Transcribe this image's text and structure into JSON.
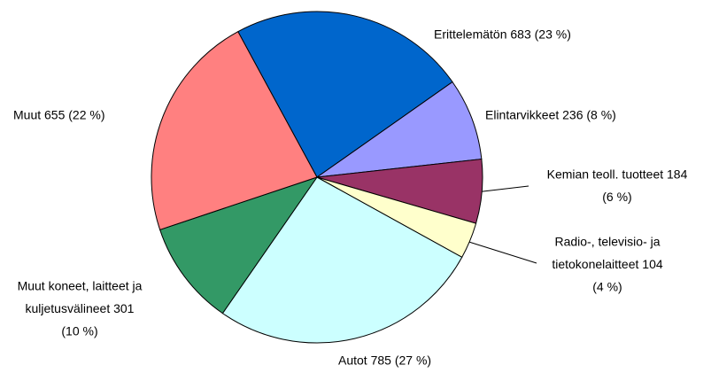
{
  "chart_data": {
    "type": "pie",
    "values": [
      683,
      236,
      184,
      104,
      785,
      301,
      655
    ],
    "value_labels": [
      [
        "Erittelemätön 683 (23 %)"
      ],
      [
        "Elintarvikkeet  236 (8 %)"
      ],
      [
        "Kemian teoll. tuotteet 184",
        "(6 %)"
      ],
      [
        "Radio-, televisio- ja",
        "tietokonelaitteet 104",
        "(4 %)"
      ],
      [
        "Autot 785 (27 %)"
      ],
      [
        "Muut  koneet, laitteet ja",
        "kuljetusvälineet 301",
        "(10 %)"
      ],
      [
        "Muut 655 (22 %)"
      ]
    ],
    "colors": [
      "#0066cc",
      "#9999ff",
      "#993366",
      "#ffffcc",
      "#ccffff",
      "#339966",
      "#ff8080"
    ],
    "start_angle": -28.5
  }
}
